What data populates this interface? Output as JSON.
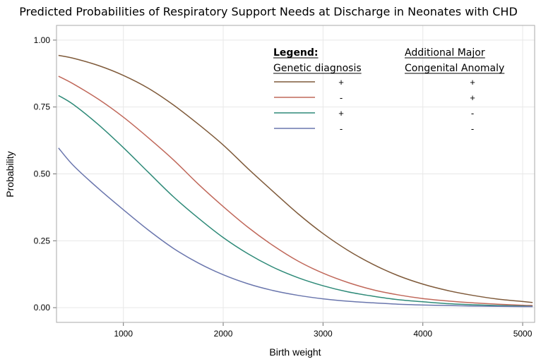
{
  "chart_data": {
    "type": "line",
    "title": "Predicted Probabilities of Respiratory Support Needs at Discharge in Neonates with CHD",
    "xlabel": "Birth weight",
    "ylabel": "Probability",
    "xlim": [
      330,
      5120
    ],
    "ylim": [
      -0.055,
      1.055
    ],
    "x_ticks": [
      1000,
      2000,
      3000,
      4000,
      5000
    ],
    "x_tick_labels": [
      "1000",
      "2000",
      "3000",
      "4000",
      "5000"
    ],
    "y_ticks": [
      0,
      0.25,
      0.5,
      0.75,
      1.0
    ],
    "y_tick_labels": [
      "0.00",
      "0.25",
      "0.50",
      "0.75",
      "1.00"
    ],
    "grid": true,
    "legend": {
      "placement": "top-right",
      "title": "Legend:",
      "col1_header": "Genetic diagnosis",
      "col2_header_line1": "Additional Major",
      "col2_header_line2": "Congenital Anomaly"
    },
    "x": [
      350,
      500,
      750,
      1000,
      1250,
      1500,
      1750,
      2000,
      2250,
      2500,
      2750,
      3000,
      3250,
      3500,
      3750,
      4000,
      4250,
      4500,
      4750,
      5000,
      5100
    ],
    "series": [
      {
        "genetic": "+",
        "anomaly": "+",
        "color": "#7f5a3a",
        "values": [
          0.943,
          0.932,
          0.905,
          0.868,
          0.82,
          0.758,
          0.686,
          0.608,
          0.519,
          0.434,
          0.351,
          0.277,
          0.214,
          0.162,
          0.12,
          0.088,
          0.064,
          0.046,
          0.032,
          0.023,
          0.019
        ]
      },
      {
        "genetic": "-",
        "anomaly": "+",
        "color": "#c0685a",
        "values": [
          0.865,
          0.836,
          0.779,
          0.712,
          0.635,
          0.553,
          0.462,
          0.378,
          0.3,
          0.232,
          0.174,
          0.129,
          0.094,
          0.067,
          0.048,
          0.034,
          0.025,
          0.018,
          0.013,
          0.009,
          0.008
        ]
      },
      {
        "genetic": "+",
        "anomaly": "-",
        "color": "#2e8a78",
        "values": [
          0.793,
          0.759,
          0.684,
          0.598,
          0.506,
          0.415,
          0.335,
          0.262,
          0.201,
          0.151,
          0.112,
          0.082,
          0.059,
          0.043,
          0.03,
          0.022,
          0.015,
          0.011,
          0.008,
          0.006,
          0.005
        ]
      },
      {
        "genetic": "-",
        "anomaly": "-",
        "color": "#6a76ad",
        "values": [
          0.597,
          0.531,
          0.445,
          0.366,
          0.29,
          0.222,
          0.167,
          0.123,
          0.089,
          0.064,
          0.046,
          0.033,
          0.024,
          0.018,
          0.013,
          0.01,
          0.008,
          0.006,
          0.005,
          0.004,
          0.004
        ]
      }
    ]
  }
}
